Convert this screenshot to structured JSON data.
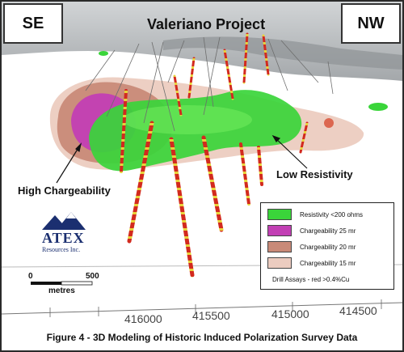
{
  "title": "Valeriano Project",
  "corners": {
    "left": "SE",
    "right": "NW"
  },
  "annotations": {
    "high_chargeability": "High Chargeability",
    "low_resistivity": "Low Resistivity"
  },
  "logo": {
    "name": "ATEX",
    "subtitle": "Resources Inc."
  },
  "scale_bar": {
    "start": "0",
    "end": "500",
    "unit": "metres"
  },
  "grid_coords": [
    "416000",
    "415500",
    "415000",
    "414500"
  ],
  "legend": {
    "items": [
      {
        "label": "Resistivity <200 ohms",
        "color": "#3ad53a"
      },
      {
        "label": "Chargeability 25 mr",
        "color": "#c23fb4"
      },
      {
        "label": "Chargeability 20 mr",
        "color": "#c98a78"
      },
      {
        "label": "Chargeability 15 mr",
        "color": "#ecccc0"
      }
    ],
    "note": "Drill Assays - red >0.4%Cu"
  },
  "caption": "Figure 4 - 3D Modeling of Historic Induced Polarization Survey Data",
  "colors": {
    "resistivity": "#3ad53a",
    "charge25": "#c23fb4",
    "charge20": "#c98a78",
    "charge15": "#ecccc0",
    "drill_red": "#d22a1e",
    "drill_yellow": "#e8d23a",
    "logo_blue": "#1b2f70"
  }
}
